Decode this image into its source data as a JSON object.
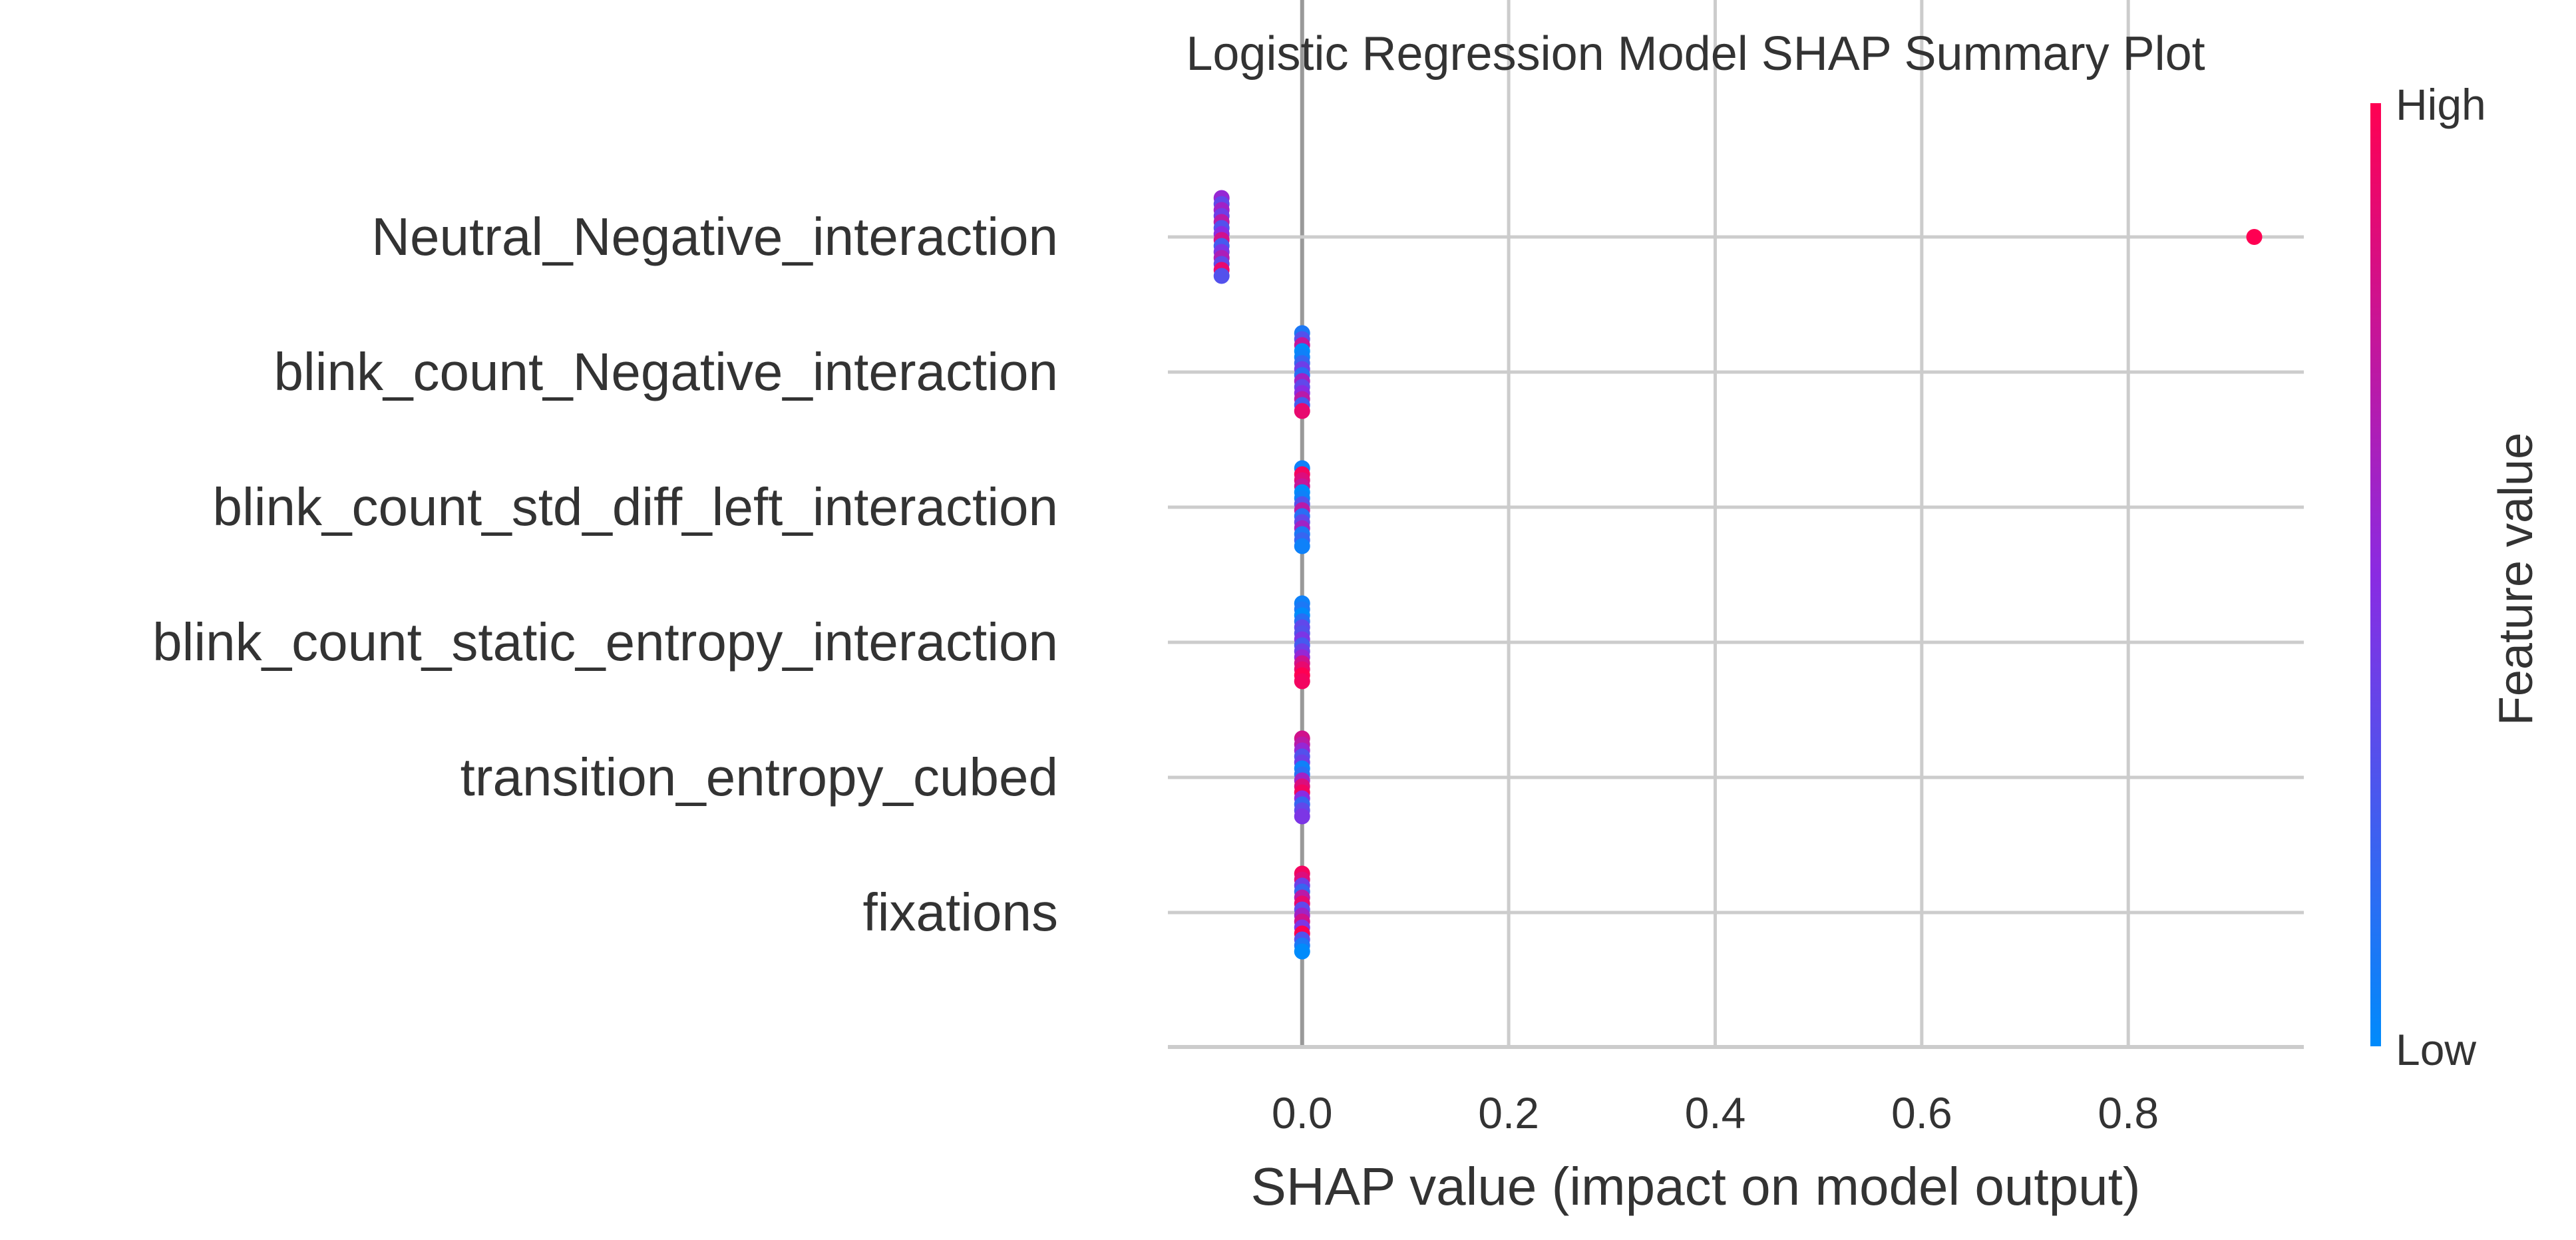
{
  "chart_data": {
    "type": "scatter",
    "subtype": "shap-beeswarm",
    "title": "Logistic Regression Model SHAP Summary Plot",
    "xlabel": "SHAP value (impact on model output)",
    "xlim": [
      -0.13,
      0.97
    ],
    "xticks": [
      0.0,
      0.2,
      0.4,
      0.6,
      0.8
    ],
    "xtick_labels": [
      "0.0",
      "0.2",
      "0.4",
      "0.6",
      "0.8"
    ],
    "grid": true,
    "colorbar": {
      "label": "Feature value",
      "high_label": "High",
      "low_label": "Low",
      "high_color": "#ff0052",
      "mid_color": "#8a2be2",
      "low_color": "#008bfb"
    },
    "features": [
      {
        "name": "Neutral_Negative_interaction",
        "points": [
          {
            "x": -0.078,
            "f": 0.55
          },
          {
            "x": -0.078,
            "f": 0.35
          },
          {
            "x": -0.078,
            "f": 0.6
          },
          {
            "x": -0.078,
            "f": 0.4
          },
          {
            "x": -0.078,
            "f": 0.7
          },
          {
            "x": -0.078,
            "f": 0.3
          },
          {
            "x": -0.078,
            "f": 0.5
          },
          {
            "x": -0.078,
            "f": 0.8
          },
          {
            "x": -0.078,
            "f": 0.25
          },
          {
            "x": -0.078,
            "f": 0.45
          },
          {
            "x": -0.078,
            "f": 0.65
          },
          {
            "x": -0.078,
            "f": 0.35
          },
          {
            "x": -0.078,
            "f": 0.9
          },
          {
            "x": -0.078,
            "f": 0.3
          },
          {
            "x": 0.922,
            "f": 1.0
          }
        ]
      },
      {
        "name": "blink_count_Negative_interaction",
        "points": [
          {
            "x": 0.0,
            "f": 0.1
          },
          {
            "x": 0.0,
            "f": 0.3
          },
          {
            "x": 0.0,
            "f": 0.75
          },
          {
            "x": 0.0,
            "f": 0.0
          },
          {
            "x": 0.0,
            "f": 0.05
          },
          {
            "x": 0.0,
            "f": 0.2
          },
          {
            "x": 0.0,
            "f": 0.4
          },
          {
            "x": 0.0,
            "f": 0.15
          },
          {
            "x": 0.0,
            "f": 0.6
          },
          {
            "x": 0.0,
            "f": 0.35
          },
          {
            "x": 0.0,
            "f": 0.5
          },
          {
            "x": 0.0,
            "f": 0.7
          },
          {
            "x": 0.0,
            "f": 0.25
          },
          {
            "x": 0.0,
            "f": 0.9
          }
        ]
      },
      {
        "name": "blink_count_std_diff_left_interaction",
        "points": [
          {
            "x": 0.0,
            "f": 0.05
          },
          {
            "x": 0.0,
            "f": 0.95
          },
          {
            "x": 0.0,
            "f": 0.85
          },
          {
            "x": 0.0,
            "f": 0.75
          },
          {
            "x": 0.0,
            "f": 0.0
          },
          {
            "x": 0.0,
            "f": 0.05
          },
          {
            "x": 0.0,
            "f": 0.3
          },
          {
            "x": 0.0,
            "f": 0.7
          },
          {
            "x": 0.0,
            "f": 0.15
          },
          {
            "x": 0.0,
            "f": 0.35
          },
          {
            "x": 0.0,
            "f": 0.6
          },
          {
            "x": 0.0,
            "f": 0.1
          },
          {
            "x": 0.0,
            "f": 0.2
          },
          {
            "x": 0.0,
            "f": 0.05
          }
        ]
      },
      {
        "name": "blink_count_static_entropy_interaction",
        "points": [
          {
            "x": 0.0,
            "f": 0.05
          },
          {
            "x": 0.0,
            "f": 0.1
          },
          {
            "x": 0.0,
            "f": 0.0
          },
          {
            "x": 0.0,
            "f": 0.15
          },
          {
            "x": 0.0,
            "f": 0.35
          },
          {
            "x": 0.0,
            "f": 0.3
          },
          {
            "x": 0.0,
            "f": 0.45
          },
          {
            "x": 0.0,
            "f": 0.25
          },
          {
            "x": 0.0,
            "f": 0.4
          },
          {
            "x": 0.0,
            "f": 0.55
          },
          {
            "x": 0.0,
            "f": 0.8
          },
          {
            "x": 0.0,
            "f": 0.9
          },
          {
            "x": 0.0,
            "f": 1.0
          },
          {
            "x": 0.0,
            "f": 0.95
          }
        ]
      },
      {
        "name": "transition_entropy_cubed",
        "points": [
          {
            "x": 0.0,
            "f": 0.8
          },
          {
            "x": 0.0,
            "f": 0.7
          },
          {
            "x": 0.0,
            "f": 0.55
          },
          {
            "x": 0.0,
            "f": 0.3
          },
          {
            "x": 0.0,
            "f": 0.4
          },
          {
            "x": 0.0,
            "f": 0.05
          },
          {
            "x": 0.0,
            "f": 0.15
          },
          {
            "x": 0.0,
            "f": 0.6
          },
          {
            "x": 0.0,
            "f": 0.85
          },
          {
            "x": 0.0,
            "f": 0.95
          },
          {
            "x": 0.0,
            "f": 0.5
          },
          {
            "x": 0.0,
            "f": 0.2
          },
          {
            "x": 0.0,
            "f": 0.35
          },
          {
            "x": 0.0,
            "f": 0.45
          }
        ]
      },
      {
        "name": "fixations",
        "points": [
          {
            "x": 0.0,
            "f": 0.95
          },
          {
            "x": 0.0,
            "f": 0.85
          },
          {
            "x": 0.0,
            "f": 0.4
          },
          {
            "x": 0.0,
            "f": 0.2
          },
          {
            "x": 0.0,
            "f": 0.7
          },
          {
            "x": 0.0,
            "f": 0.9
          },
          {
            "x": 0.0,
            "f": 0.35
          },
          {
            "x": 0.0,
            "f": 0.6
          },
          {
            "x": 0.0,
            "f": 0.8
          },
          {
            "x": 0.0,
            "f": 0.45
          },
          {
            "x": 0.0,
            "f": 1.0
          },
          {
            "x": 0.0,
            "f": 0.3
          },
          {
            "x": 0.0,
            "f": 0.1
          },
          {
            "x": 0.0,
            "f": 0.0
          }
        ]
      }
    ]
  }
}
